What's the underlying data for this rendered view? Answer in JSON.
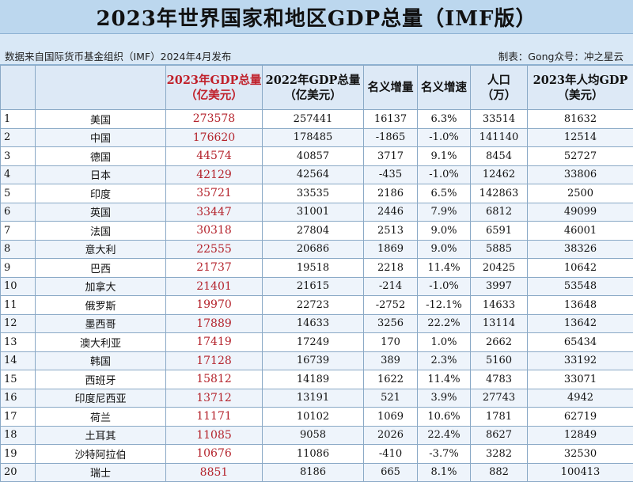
{
  "title": "2023年世界国家和地区GDP总量（IMF版）",
  "source": "数据来自国际货币基金组织（IMF）2024年4月发布",
  "maker": "制表：Gong众号：冲之星云",
  "headers": {
    "rank": "",
    "country": "",
    "gdp2023_line1": "2023年GDP总量",
    "gdp2023_line2": "（亿美元）",
    "gdp2022_line1": "2022年GDP总量",
    "gdp2022_line2": "（亿美元）",
    "nominal_increase": "名义增量",
    "nominal_growth": "名义增速",
    "population_line1": "人口",
    "population_line2": "（万）",
    "gdp_per_capita_line1": "2023年人均GDP",
    "gdp_per_capita_line2": "（美元）"
  },
  "rows": [
    {
      "rank": "1",
      "country": "美国",
      "gdp2023": "273578",
      "gdp2022": "257441",
      "increase": "16137",
      "growth": "6.3%",
      "population": "33514",
      "per_capita": "81632"
    },
    {
      "rank": "2",
      "country": "中国",
      "gdp2023": "176620",
      "gdp2022": "178485",
      "increase": "-1865",
      "growth": "-1.0%",
      "population": "141140",
      "per_capita": "12514"
    },
    {
      "rank": "3",
      "country": "德国",
      "gdp2023": "44574",
      "gdp2022": "40857",
      "increase": "3717",
      "growth": "9.1%",
      "population": "8454",
      "per_capita": "52727"
    },
    {
      "rank": "4",
      "country": "日本",
      "gdp2023": "42129",
      "gdp2022": "42564",
      "increase": "-435",
      "growth": "-1.0%",
      "population": "12462",
      "per_capita": "33806"
    },
    {
      "rank": "5",
      "country": "印度",
      "gdp2023": "35721",
      "gdp2022": "33535",
      "increase": "2186",
      "growth": "6.5%",
      "population": "142863",
      "per_capita": "2500"
    },
    {
      "rank": "6",
      "country": "英国",
      "gdp2023": "33447",
      "gdp2022": "31001",
      "increase": "2446",
      "growth": "7.9%",
      "population": "6812",
      "per_capita": "49099"
    },
    {
      "rank": "7",
      "country": "法国",
      "gdp2023": "30318",
      "gdp2022": "27804",
      "increase": "2513",
      "growth": "9.0%",
      "population": "6591",
      "per_capita": "46001"
    },
    {
      "rank": "8",
      "country": "意大利",
      "gdp2023": "22555",
      "gdp2022": "20686",
      "increase": "1869",
      "growth": "9.0%",
      "population": "5885",
      "per_capita": "38326"
    },
    {
      "rank": "9",
      "country": "巴西",
      "gdp2023": "21737",
      "gdp2022": "19518",
      "increase": "2218",
      "growth": "11.4%",
      "population": "20425",
      "per_capita": "10642"
    },
    {
      "rank": "10",
      "country": "加拿大",
      "gdp2023": "21401",
      "gdp2022": "21615",
      "increase": "-214",
      "growth": "-1.0%",
      "population": "3997",
      "per_capita": "53548"
    },
    {
      "rank": "11",
      "country": "俄罗斯",
      "gdp2023": "19970",
      "gdp2022": "22723",
      "increase": "-2752",
      "growth": "-12.1%",
      "population": "14633",
      "per_capita": "13648"
    },
    {
      "rank": "12",
      "country": "墨西哥",
      "gdp2023": "17889",
      "gdp2022": "14633",
      "increase": "3256",
      "growth": "22.2%",
      "population": "13114",
      "per_capita": "13642"
    },
    {
      "rank": "13",
      "country": "澳大利亚",
      "gdp2023": "17419",
      "gdp2022": "17249",
      "increase": "170",
      "growth": "1.0%",
      "population": "2662",
      "per_capita": "65434"
    },
    {
      "rank": "14",
      "country": "韩国",
      "gdp2023": "17128",
      "gdp2022": "16739",
      "increase": "389",
      "growth": "2.3%",
      "population": "5160",
      "per_capita": "33192"
    },
    {
      "rank": "15",
      "country": "西班牙",
      "gdp2023": "15812",
      "gdp2022": "14189",
      "increase": "1622",
      "growth": "11.4%",
      "population": "4783",
      "per_capita": "33071"
    },
    {
      "rank": "16",
      "country": "印度尼西亚",
      "gdp2023": "13712",
      "gdp2022": "13191",
      "increase": "521",
      "growth": "3.9%",
      "population": "27743",
      "per_capita": "4942"
    },
    {
      "rank": "17",
      "country": "荷兰",
      "gdp2023": "11171",
      "gdp2022": "10102",
      "increase": "1069",
      "growth": "10.6%",
      "population": "1781",
      "per_capita": "62719"
    },
    {
      "rank": "18",
      "country": "土耳其",
      "gdp2023": "11085",
      "gdp2022": "9058",
      "increase": "2026",
      "growth": "22.4%",
      "population": "8627",
      "per_capita": "12849"
    },
    {
      "rank": "19",
      "country": "沙特阿拉伯",
      "gdp2023": "10676",
      "gdp2022": "11086",
      "increase": "-410",
      "growth": "-3.7%",
      "population": "3282",
      "per_capita": "32530"
    },
    {
      "rank": "20",
      "country": "瑞士",
      "gdp2023": "8851",
      "gdp2022": "8186",
      "increase": "665",
      "growth": "8.1%",
      "population": "882",
      "per_capita": "100413"
    }
  ]
}
